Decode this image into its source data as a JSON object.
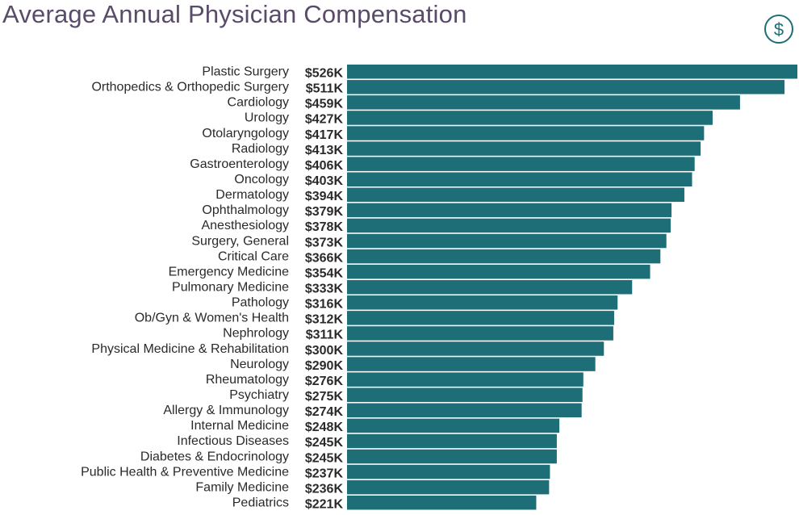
{
  "chart_data": {
    "type": "bar",
    "orientation": "horizontal",
    "title": "Average Annual Physician Compensation",
    "icon": "dollar-circle-icon",
    "color": "#1e6e78",
    "title_color": "#5a4b6b",
    "xlim": [
      0,
      526
    ],
    "grid": false,
    "categories": [
      "Plastic Surgery",
      "Orthopedics & Orthopedic Surgery",
      "Cardiology",
      "Urology",
      "Otolaryngology",
      "Radiology",
      "Gastroenterology",
      "Oncology",
      "Dermatology",
      "Ophthalmology",
      "Anesthesiology",
      "Surgery, General",
      "Critical Care",
      "Emergency Medicine",
      "Pulmonary Medicine",
      "Pathology",
      "Ob/Gyn & Women's Health",
      "Nephrology",
      "Physical Medicine & Rehabilitation",
      "Neurology",
      "Rheumatology",
      "Psychiatry",
      "Allergy & Immunology",
      "Internal Medicine",
      "Infectious Diseases",
      "Diabetes & Endocrinology",
      "Public Health & Preventive Medicine",
      "Family Medicine",
      "Pediatrics"
    ],
    "values": [
      526,
      511,
      459,
      427,
      417,
      413,
      406,
      403,
      394,
      379,
      378,
      373,
      366,
      354,
      333,
      316,
      312,
      311,
      300,
      290,
      276,
      275,
      274,
      248,
      245,
      245,
      237,
      236,
      221
    ],
    "labels": [
      "$526K",
      "$511K",
      "$459K",
      "$427K",
      "$417K",
      "$413K",
      "$406K",
      "$403K",
      "$394K",
      "$379K",
      "$378K",
      "$373K",
      "$366K",
      "$354K",
      "$333K",
      "$316K",
      "$312K",
      "$311K",
      "$300K",
      "$290K",
      "$276K",
      "$275K",
      "$274K",
      "$248K",
      "$245K",
      "$245K",
      "$237K",
      "$236K",
      "$221K"
    ]
  }
}
